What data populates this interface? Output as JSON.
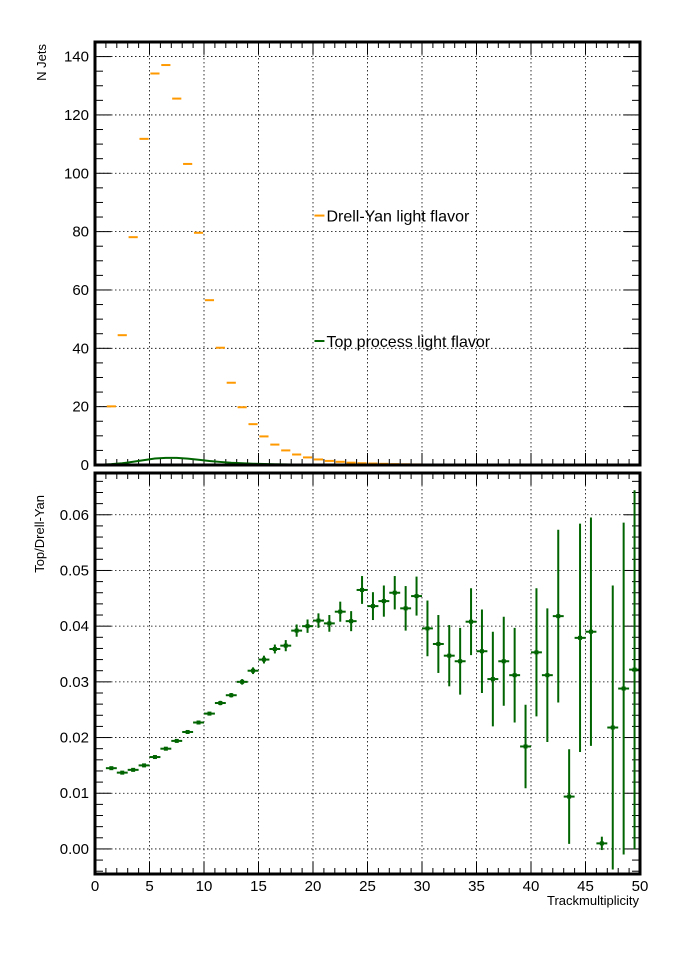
{
  "chart_data": [
    {
      "type": "scatter",
      "panel": "top",
      "ylabel": "N Jets",
      "xlim": [
        0,
        50
      ],
      "ylim": [
        0,
        145
      ],
      "grid": true,
      "x_ticks": [
        0,
        5,
        10,
        15,
        20,
        25,
        30,
        35,
        40,
        45,
        50
      ],
      "y_ticks": [
        0,
        20,
        40,
        60,
        80,
        100,
        120,
        140
      ],
      "x": [
        1.5,
        2.5,
        3.5,
        4.5,
        5.5,
        6.5,
        7.5,
        8.5,
        9.5,
        10.5,
        11.5,
        12.5,
        13.5,
        14.5,
        15.5,
        16.5,
        17.5,
        18.5,
        19.5,
        20.5,
        21.5,
        22.5,
        23.5,
        24.5,
        25.5,
        26.5,
        27.5,
        28.5,
        29.5,
        30.5,
        31.5,
        32.5,
        33.5,
        34.5,
        35.5,
        36.5,
        37.5,
        38.5,
        39.5,
        40.5,
        41.5,
        42.5,
        43.5,
        44.5,
        45.5,
        46.5,
        47.5,
        48.5,
        49.5
      ],
      "series": [
        {
          "name": "Drell-Yan light flavor",
          "color": "#ff9900",
          "values": [
            20.1,
            44.5,
            78.1,
            111.8,
            134.2,
            137.1,
            125.6,
            103.2,
            79.6,
            56.5,
            40.2,
            28.2,
            19.8,
            14.0,
            9.8,
            7.0,
            5.0,
            3.6,
            2.6,
            1.9,
            1.4,
            1.1,
            0.8,
            0.6,
            0.5,
            0.4,
            0.3,
            0.25,
            0.2,
            0.16,
            0.13,
            0.1,
            0.08,
            0.07,
            0.06,
            0.05,
            0.04,
            0.03,
            0.03,
            0.02,
            0.02,
            0.02,
            0.01,
            0.01,
            0.01,
            0.01,
            0.01,
            0.01,
            0.01
          ]
        },
        {
          "name": "Top process light flavor",
          "color": "#006400",
          "values": [
            0.29,
            0.61,
            1.11,
            1.68,
            2.21,
            2.46,
            2.43,
            2.17,
            1.8,
            1.37,
            1.05,
            0.78,
            0.6,
            0.45,
            0.34,
            0.26,
            0.2,
            0.15,
            0.11,
            0.08,
            0.06,
            0.05,
            0.04,
            0.03,
            0.02,
            0.02,
            0.01,
            0.01,
            0.01,
            0.01,
            0.01,
            0.0,
            0.0,
            0.0,
            0.0,
            0.0,
            0.0,
            0.0,
            0.0,
            0.0,
            0.0,
            0.0,
            0.0,
            0.0,
            0.0,
            0.0,
            0.0,
            0.0,
            0.0
          ]
        }
      ],
      "legend_placement": "center"
    },
    {
      "type": "scatter",
      "panel": "bottom",
      "title": "",
      "xlabel": "Trackmultiplicity",
      "ylabel": "Top/Drell-Yan",
      "xlim": [
        0,
        50
      ],
      "ylim": [
        -0.0045,
        0.0675
      ],
      "grid": true,
      "x_ticks": [
        0,
        5,
        10,
        15,
        20,
        25,
        30,
        35,
        40,
        45,
        50
      ],
      "y_ticks": [
        "0.00",
        "0.01",
        "0.02",
        "0.03",
        "0.04",
        "0.05",
        "0.06"
      ],
      "series": [
        {
          "name": "",
          "color": "#006400",
          "x": [
            1.5,
            2.5,
            3.5,
            4.5,
            5.5,
            6.5,
            7.5,
            8.5,
            9.5,
            10.5,
            11.5,
            12.5,
            13.5,
            14.5,
            15.5,
            16.5,
            17.5,
            18.5,
            19.5,
            20.5,
            21.5,
            22.5,
            23.5,
            24.5,
            25.5,
            26.5,
            27.5,
            28.5,
            29.5,
            30.5,
            31.5,
            32.5,
            33.5,
            34.5,
            35.5,
            36.5,
            37.5,
            38.5,
            39.5,
            40.5,
            41.5,
            42.5,
            43.5,
            44.5,
            45.5,
            46.5,
            47.5,
            48.5,
            49.5
          ],
          "values": [
            0.0145,
            0.0137,
            0.0142,
            0.015,
            0.0165,
            0.018,
            0.0194,
            0.021,
            0.0227,
            0.0243,
            0.0262,
            0.0276,
            0.03,
            0.032,
            0.034,
            0.0359,
            0.0365,
            0.0392,
            0.04,
            0.041,
            0.0405,
            0.0426,
            0.0409,
            0.0465,
            0.0436,
            0.0445,
            0.046,
            0.0432,
            0.0454,
            0.0396,
            0.0368,
            0.0347,
            0.0337,
            0.0408,
            0.0355,
            0.0305,
            0.0337,
            0.0312,
            0.0184,
            0.0353,
            0.0312,
            0.0418,
            0.0094,
            0.0379,
            0.039,
            0.001,
            0.0218,
            0.0288,
            0.0322
          ],
          "errors": [
            0.0003,
            0.0003,
            0.0003,
            0.0003,
            0.0003,
            0.0003,
            0.0003,
            0.0003,
            0.0003,
            0.0003,
            0.0004,
            0.0004,
            0.0005,
            0.0006,
            0.0007,
            0.0008,
            0.001,
            0.0011,
            0.0012,
            0.0013,
            0.0015,
            0.0018,
            0.0018,
            0.0025,
            0.0025,
            0.0028,
            0.003,
            0.004,
            0.0035,
            0.005,
            0.0052,
            0.0055,
            0.006,
            0.006,
            0.0075,
            0.0085,
            0.008,
            0.0085,
            0.0075,
            0.0115,
            0.012,
            0.0155,
            0.0085,
            0.0205,
            0.0205,
            0.0012,
            0.0255,
            0.0298,
            0.0322
          ]
        }
      ]
    }
  ]
}
